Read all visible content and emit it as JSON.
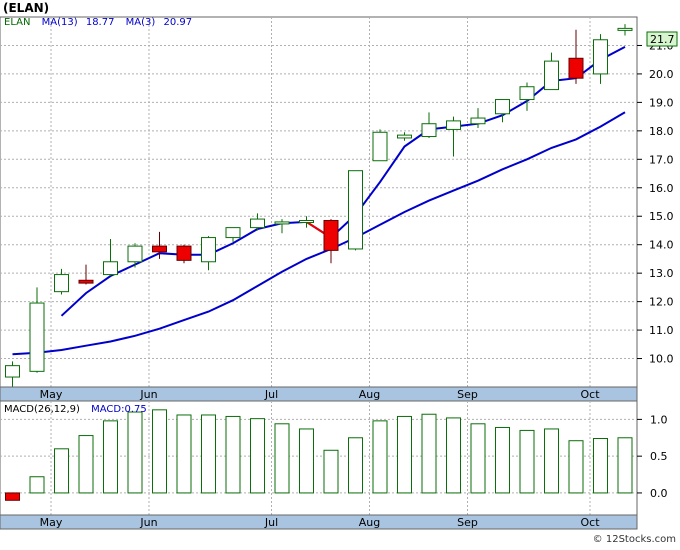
{
  "title": "(ELAN)",
  "legend": {
    "symbol": "ELAN",
    "ma13_label": "MA(13)",
    "ma13_value": "18.77",
    "ma3_label": "MA(3)",
    "ma3_value": "20.97"
  },
  "price_tag": "21.7",
  "macd_legend": {
    "label": "MACD(26,12,9)",
    "value_label": "MACD:0.75"
  },
  "watermark": "© 12Stocks.com",
  "colors": {
    "up_candle": "#0a6e0a",
    "down_candle": "#ee0000",
    "ma_line": "#0000cc",
    "axis_band": "#a9c4e0",
    "tag_bg": "#d8f5d0"
  },
  "chart_data": [
    {
      "type": "candlestick",
      "title": "(ELAN)",
      "x_labels": [
        "May",
        "Jun",
        "Jul",
        "Aug",
        "Sep",
        "Oct"
      ],
      "x_label_index": [
        1,
        5,
        10,
        14,
        18,
        23
      ],
      "ylim": [
        9.0,
        22.0
      ],
      "yticks": [
        10.0,
        11.0,
        12.0,
        13.0,
        14.0,
        15.0,
        16.0,
        17.0,
        18.0,
        19.0,
        20.0,
        21.0
      ],
      "candles": [
        {
          "o": 9.35,
          "h": 9.9,
          "l": 9.0,
          "c": 9.75
        },
        {
          "o": 9.55,
          "h": 12.5,
          "l": 9.5,
          "c": 11.95
        },
        {
          "o": 12.35,
          "h": 13.15,
          "l": 12.25,
          "c": 12.95
        },
        {
          "o": 12.75,
          "h": 13.3,
          "l": 12.6,
          "c": 12.65
        },
        {
          "o": 12.95,
          "h": 14.2,
          "l": 12.9,
          "c": 13.4
        },
        {
          "o": 13.4,
          "h": 14.05,
          "l": 13.2,
          "c": 13.95
        },
        {
          "o": 13.95,
          "h": 14.45,
          "l": 13.5,
          "c": 13.75
        },
        {
          "o": 13.95,
          "h": 14.0,
          "l": 13.35,
          "c": 13.45
        },
        {
          "o": 13.4,
          "h": 14.3,
          "l": 13.1,
          "c": 14.25
        },
        {
          "o": 14.25,
          "h": 14.6,
          "l": 14.1,
          "c": 14.6
        },
        {
          "o": 14.6,
          "h": 15.1,
          "l": 14.5,
          "c": 14.9
        },
        {
          "o": 14.8,
          "h": 14.9,
          "l": 14.4,
          "c": 14.8
        },
        {
          "o": 14.8,
          "h": 15.0,
          "l": 14.6,
          "c": 14.85
        },
        {
          "o": 14.85,
          "h": 14.9,
          "l": 13.35,
          "c": 13.8
        },
        {
          "o": 13.85,
          "h": 16.6,
          "l": 13.8,
          "c": 16.6
        },
        {
          "o": 16.95,
          "h": 18.05,
          "l": 16.95,
          "c": 17.95
        },
        {
          "o": 17.75,
          "h": 17.95,
          "l": 17.65,
          "c": 17.85
        },
        {
          "o": 17.8,
          "h": 18.65,
          "l": 17.75,
          "c": 18.25
        },
        {
          "o": 18.05,
          "h": 18.5,
          "l": 17.1,
          "c": 18.35
        },
        {
          "o": 18.25,
          "h": 18.8,
          "l": 18.1,
          "c": 18.45
        },
        {
          "o": 18.6,
          "h": 19.05,
          "l": 18.3,
          "c": 19.1
        },
        {
          "o": 19.1,
          "h": 19.7,
          "l": 18.7,
          "c": 19.55
        },
        {
          "o": 19.45,
          "h": 20.75,
          "l": 19.45,
          "c": 20.45
        },
        {
          "o": 20.55,
          "h": 21.55,
          "l": 19.65,
          "c": 19.85
        },
        {
          "o": 20.0,
          "h": 21.4,
          "l": 19.65,
          "c": 21.2
        },
        {
          "o": 21.55,
          "h": 21.75,
          "l": 21.35,
          "c": 21.6
        }
      ],
      "ma3": [
        null,
        null,
        11.5,
        12.3,
        12.9,
        13.3,
        13.7,
        13.65,
        13.65,
        14.05,
        14.55,
        14.75,
        14.8,
        14.25,
        15.05,
        16.2,
        17.45,
        18.05,
        18.15,
        18.25,
        18.55,
        19.05,
        19.75,
        19.85,
        20.5,
        20.95
      ],
      "ma13": [
        10.15,
        10.2,
        10.3,
        10.45,
        10.6,
        10.8,
        11.05,
        11.35,
        11.65,
        12.05,
        12.55,
        13.05,
        13.5,
        13.85,
        14.25,
        14.7,
        15.15,
        15.55,
        15.9,
        16.25,
        16.65,
        17.0,
        17.4,
        17.7,
        18.15,
        18.65
      ]
    },
    {
      "type": "bar",
      "title": "MACD(26,12,9)",
      "ylim": [
        -0.3,
        1.25
      ],
      "yticks": [
        0.0,
        0.5,
        1.0
      ],
      "values": [
        -0.1,
        0.22,
        0.6,
        0.78,
        0.98,
        1.1,
        1.13,
        1.06,
        1.06,
        1.04,
        1.01,
        0.94,
        0.87,
        0.58,
        0.75,
        0.98,
        1.04,
        1.07,
        1.02,
        0.94,
        0.89,
        0.85,
        0.87,
        0.71,
        0.74,
        0.75
      ]
    }
  ]
}
